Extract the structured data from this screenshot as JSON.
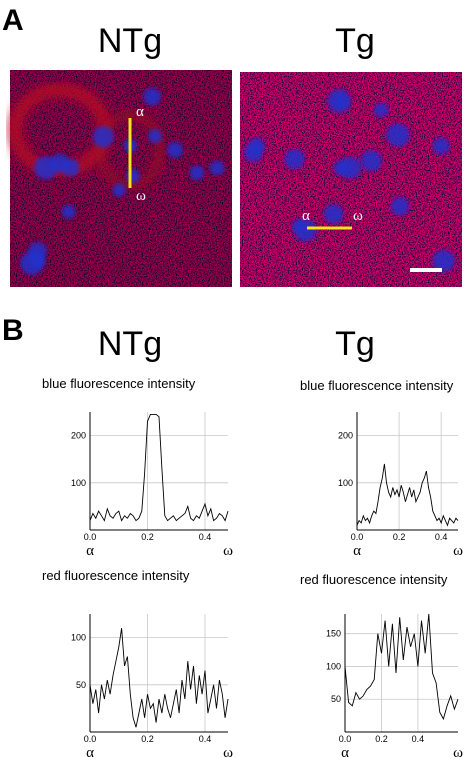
{
  "panels": {
    "panel_a": {
      "label": "A",
      "left_title": "NTg",
      "right_title": "Tg",
      "alpha": "α",
      "omega": "ω"
    },
    "panel_b": {
      "label": "B",
      "left_title": "NTg",
      "right_title": "Tg"
    }
  },
  "chart_data": [
    {
      "type": "line",
      "ylabel": "blue fluorescence intensity",
      "x_start_label": "α",
      "x_end_label": "ω",
      "color": "#000000",
      "grid": true,
      "xlim": [
        0,
        0.48
      ],
      "xticks": [
        {
          "value": 0,
          "label": "0.0"
        },
        0.2,
        0.4
      ],
      "ylim": [
        0,
        250
      ],
      "yticks": [
        100,
        200
      ],
      "x": [
        0,
        0.01,
        0.02,
        0.03,
        0.04,
        0.05,
        0.06,
        0.07,
        0.08,
        0.09,
        0.1,
        0.11,
        0.12,
        0.13,
        0.14,
        0.15,
        0.16,
        0.17,
        0.18,
        0.19,
        0.2,
        0.21,
        0.22,
        0.23,
        0.24,
        0.25,
        0.26,
        0.27,
        0.28,
        0.29,
        0.3,
        0.31,
        0.32,
        0.33,
        0.34,
        0.35,
        0.36,
        0.37,
        0.38,
        0.39,
        0.4,
        0.41,
        0.42,
        0.43,
        0.44,
        0.45,
        0.46,
        0.47,
        0.48
      ],
      "values": [
        20,
        35,
        25,
        40,
        30,
        20,
        45,
        30,
        25,
        35,
        40,
        20,
        30,
        25,
        35,
        30,
        20,
        25,
        40,
        120,
        230,
        245,
        245,
        245,
        240,
        130,
        30,
        20,
        25,
        30,
        20,
        25,
        30,
        35,
        50,
        25,
        20,
        30,
        25,
        40,
        55,
        30,
        45,
        20,
        25,
        35,
        30,
        20,
        40
      ]
    },
    {
      "type": "line",
      "ylabel": "blue fluorescence intensity",
      "x_start_label": "α",
      "x_end_label": "ω",
      "color": "#000000",
      "grid": true,
      "xlim": [
        0,
        0.48
      ],
      "xticks": [
        {
          "value": 0,
          "label": "0.0"
        },
        0.2,
        0.4
      ],
      "ylim": [
        0,
        250
      ],
      "yticks": [
        100,
        200
      ],
      "x": [
        0,
        0.01,
        0.02,
        0.03,
        0.04,
        0.05,
        0.06,
        0.07,
        0.08,
        0.09,
        0.1,
        0.11,
        0.12,
        0.13,
        0.14,
        0.15,
        0.16,
        0.17,
        0.18,
        0.19,
        0.2,
        0.21,
        0.22,
        0.23,
        0.24,
        0.25,
        0.26,
        0.27,
        0.28,
        0.29,
        0.3,
        0.31,
        0.32,
        0.33,
        0.34,
        0.35,
        0.36,
        0.37,
        0.38,
        0.39,
        0.4,
        0.41,
        0.42,
        0.43,
        0.44,
        0.45,
        0.46,
        0.47,
        0.48
      ],
      "values": [
        10,
        20,
        15,
        30,
        20,
        25,
        15,
        30,
        40,
        35,
        60,
        90,
        110,
        140,
        100,
        80,
        70,
        90,
        75,
        85,
        70,
        95,
        80,
        60,
        75,
        90,
        70,
        85,
        60,
        70,
        80,
        100,
        110,
        125,
        90,
        70,
        40,
        30,
        20,
        25,
        15,
        30,
        20,
        10,
        25,
        20,
        15,
        25,
        20
      ]
    },
    {
      "type": "line",
      "ylabel": "red fluorescence intensity",
      "x_start_label": "α",
      "x_end_label": "ω",
      "color": "#000000",
      "grid": true,
      "xlim": [
        0,
        0.48
      ],
      "xticks": [
        {
          "value": 0,
          "label": "0.0"
        },
        0.2,
        0.4
      ],
      "ylim": [
        0,
        125
      ],
      "yticks": [
        50,
        100
      ],
      "x": [
        0,
        0.01,
        0.02,
        0.03,
        0.04,
        0.05,
        0.06,
        0.07,
        0.08,
        0.09,
        0.1,
        0.11,
        0.12,
        0.13,
        0.14,
        0.15,
        0.16,
        0.17,
        0.18,
        0.19,
        0.2,
        0.21,
        0.22,
        0.23,
        0.24,
        0.25,
        0.26,
        0.27,
        0.28,
        0.29,
        0.3,
        0.31,
        0.32,
        0.33,
        0.34,
        0.35,
        0.36,
        0.37,
        0.38,
        0.39,
        0.4,
        0.41,
        0.42,
        0.43,
        0.44,
        0.45,
        0.46,
        0.47,
        0.48
      ],
      "values": [
        50,
        30,
        45,
        20,
        50,
        35,
        55,
        40,
        60,
        75,
        90,
        110,
        70,
        80,
        40,
        15,
        5,
        20,
        35,
        15,
        40,
        25,
        30,
        10,
        35,
        20,
        40,
        25,
        15,
        30,
        45,
        20,
        55,
        35,
        75,
        45,
        70,
        30,
        60,
        40,
        65,
        20,
        35,
        50,
        25,
        55,
        40,
        15,
        35
      ]
    },
    {
      "type": "line",
      "ylabel": "red fluorescence intensity",
      "x_start_label": "α",
      "x_end_label": "ω",
      "color": "#000000",
      "grid": true,
      "xlim": [
        0,
        0.62
      ],
      "xticks": [
        {
          "value": 0,
          "label": "0.0"
        },
        0.2,
        0.4
      ],
      "ylim": [
        0,
        180
      ],
      "yticks": [
        50,
        100,
        150
      ],
      "x": [
        0,
        0.02,
        0.04,
        0.06,
        0.08,
        0.1,
        0.12,
        0.14,
        0.16,
        0.18,
        0.2,
        0.22,
        0.24,
        0.26,
        0.28,
        0.3,
        0.32,
        0.34,
        0.36,
        0.38,
        0.4,
        0.42,
        0.44,
        0.46,
        0.48,
        0.5,
        0.52,
        0.54,
        0.56,
        0.58,
        0.6,
        0.62
      ],
      "values": [
        100,
        45,
        40,
        60,
        50,
        55,
        65,
        70,
        80,
        150,
        120,
        170,
        100,
        165,
        90,
        175,
        110,
        160,
        130,
        150,
        100,
        170,
        120,
        180,
        90,
        75,
        30,
        20,
        40,
        55,
        35,
        50
      ]
    }
  ]
}
